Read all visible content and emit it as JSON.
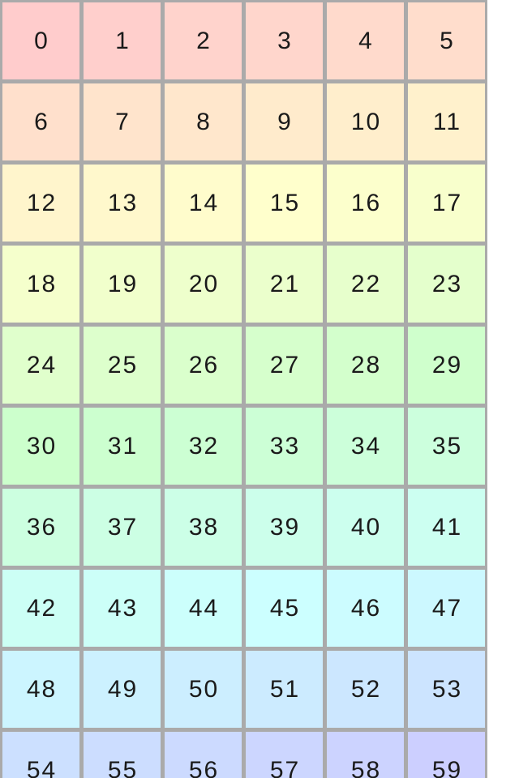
{
  "grid": {
    "columns": 6,
    "rows": 10,
    "border_color": "#aaaaaa",
    "text_color": "#1a1a1a",
    "page_background": "#ffffff",
    "cells": [
      {
        "label": "0",
        "color": "#ffcccc"
      },
      {
        "label": "1",
        "color": "#ffcfcc"
      },
      {
        "label": "2",
        "color": "#ffd3cc"
      },
      {
        "label": "3",
        "color": "#ffd6cc"
      },
      {
        "label": "4",
        "color": "#ffdacc"
      },
      {
        "label": "5",
        "color": "#ffddcc"
      },
      {
        "label": "6",
        "color": "#ffe0cc"
      },
      {
        "label": "7",
        "color": "#ffe4cc"
      },
      {
        "label": "8",
        "color": "#ffe7cc"
      },
      {
        "label": "9",
        "color": "#ffebcc"
      },
      {
        "label": "10",
        "color": "#ffeecc"
      },
      {
        "label": "11",
        "color": "#fff1cc"
      },
      {
        "label": "12",
        "color": "#fff5cc"
      },
      {
        "label": "13",
        "color": "#fff8cc"
      },
      {
        "label": "14",
        "color": "#fffccc"
      },
      {
        "label": "15",
        "color": "#ffffcc"
      },
      {
        "label": "16",
        "color": "#fcffcc"
      },
      {
        "label": "17",
        "color": "#f8ffcc"
      },
      {
        "label": "18",
        "color": "#f5ffcc"
      },
      {
        "label": "19",
        "color": "#f1ffcc"
      },
      {
        "label": "20",
        "color": "#eeffcc"
      },
      {
        "label": "21",
        "color": "#ebffcc"
      },
      {
        "label": "22",
        "color": "#e7ffcc"
      },
      {
        "label": "23",
        "color": "#e4ffcc"
      },
      {
        "label": "24",
        "color": "#e0ffcc"
      },
      {
        "label": "25",
        "color": "#ddffcc"
      },
      {
        "label": "26",
        "color": "#daffcc"
      },
      {
        "label": "27",
        "color": "#d6ffcc"
      },
      {
        "label": "28",
        "color": "#d3ffcc"
      },
      {
        "label": "29",
        "color": "#cfffcc"
      },
      {
        "label": "30",
        "color": "#ccffcc"
      },
      {
        "label": "31",
        "color": "#ccffcf"
      },
      {
        "label": "32",
        "color": "#ccffd3"
      },
      {
        "label": "33",
        "color": "#ccffd6"
      },
      {
        "label": "34",
        "color": "#ccffda"
      },
      {
        "label": "35",
        "color": "#ccffdd"
      },
      {
        "label": "36",
        "color": "#ccffe0"
      },
      {
        "label": "37",
        "color": "#ccffe4"
      },
      {
        "label": "38",
        "color": "#ccffe7"
      },
      {
        "label": "39",
        "color": "#ccffeb"
      },
      {
        "label": "40",
        "color": "#ccffee"
      },
      {
        "label": "41",
        "color": "#ccfff1"
      },
      {
        "label": "42",
        "color": "#ccfff5"
      },
      {
        "label": "43",
        "color": "#ccfff8"
      },
      {
        "label": "44",
        "color": "#ccfffc"
      },
      {
        "label": "45",
        "color": "#ccffff"
      },
      {
        "label": "46",
        "color": "#ccfcff"
      },
      {
        "label": "47",
        "color": "#ccf8ff"
      },
      {
        "label": "48",
        "color": "#ccf5ff"
      },
      {
        "label": "49",
        "color": "#ccf1ff"
      },
      {
        "label": "50",
        "color": "#cceeff"
      },
      {
        "label": "51",
        "color": "#ccebff"
      },
      {
        "label": "52",
        "color": "#cce7ff"
      },
      {
        "label": "53",
        "color": "#cce4ff"
      },
      {
        "label": "54",
        "color": "#cce0ff"
      },
      {
        "label": "55",
        "color": "#ccddff"
      },
      {
        "label": "56",
        "color": "#ccdaff"
      },
      {
        "label": "57",
        "color": "#ccd6ff"
      },
      {
        "label": "58",
        "color": "#ccd3ff"
      },
      {
        "label": "59",
        "color": "#cccfff"
      }
    ]
  },
  "chart_data": {
    "type": "heatmap",
    "title": "",
    "rows": 10,
    "columns": 6,
    "values": [
      [
        0,
        1,
        2,
        3,
        4,
        5
      ],
      [
        6,
        7,
        8,
        9,
        10,
        11
      ],
      [
        12,
        13,
        14,
        15,
        16,
        17
      ],
      [
        18,
        19,
        20,
        21,
        22,
        23
      ],
      [
        24,
        25,
        26,
        27,
        28,
        29
      ],
      [
        30,
        31,
        32,
        33,
        34,
        35
      ],
      [
        36,
        37,
        38,
        39,
        40,
        41
      ],
      [
        42,
        43,
        44,
        45,
        46,
        47
      ],
      [
        48,
        49,
        50,
        51,
        52,
        53
      ],
      [
        54,
        55,
        56,
        57,
        58,
        59
      ]
    ],
    "color_encoding": "cell background hue = 4 degrees x value, hsl(4v, 100%, 90%)",
    "legend": "none",
    "grid_lines": "gray #aaaaaa between all cells",
    "notes": "last row partially clipped at bottom edge of viewport"
  }
}
